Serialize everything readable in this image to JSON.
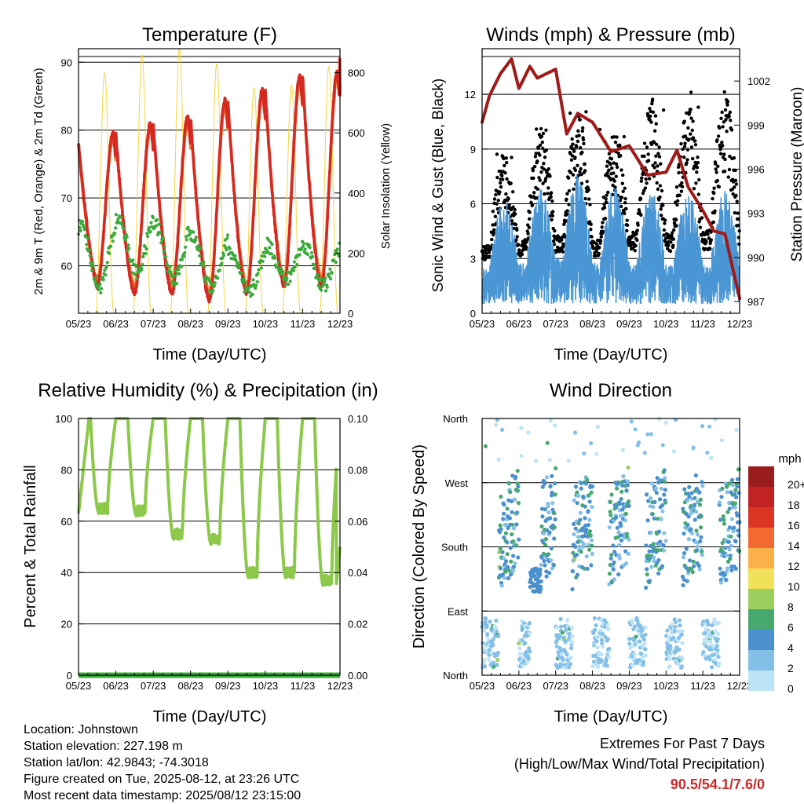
{
  "chart_data": [
    {
      "type": "line",
      "title": "Temperature (F)",
      "xlabel": "Time (Day/UTC)",
      "ylabel": "2m & 9m T (Red, Orange) & 2m Td (Green)",
      "y2label": "Solar Insolation (Yellow)",
      "xticks": [
        "05/23",
        "06/23",
        "07/23",
        "08/23",
        "09/23",
        "10/23",
        "11/23",
        "12/23"
      ],
      "ylim": [
        53,
        92
      ],
      "yticks": [
        60,
        70,
        80,
        90
      ],
      "y2lim": [
        0,
        880
      ],
      "y2ticks": [
        0,
        200,
        400,
        600,
        800
      ],
      "grid": true,
      "series": [
        {
          "color": "#d42a22",
          "days": [
            {
              "min": 57,
              "max": 79.5
            },
            {
              "min": 56,
              "max": 81
            },
            {
              "min": 56,
              "max": 82
            },
            {
              "min": 55,
              "max": 84.5
            },
            {
              "min": 56,
              "max": 86
            },
            {
              "min": 57,
              "max": 88
            },
            {
              "min": 57,
              "max": 88.5
            },
            {
              "min": 85,
              "max": 90.5
            }
          ]
        },
        {
          "color": "#f2782a",
          "days": [
            {
              "min": 58,
              "max": 79
            },
            {
              "min": 57,
              "max": 80.5
            },
            {
              "min": 57,
              "max": 81.5
            },
            {
              "min": 56,
              "max": 84
            },
            {
              "min": 57,
              "max": 85.5
            },
            {
              "min": 58,
              "max": 87.5
            },
            {
              "min": 58,
              "max": 88
            },
            {
              "min": 85,
              "max": 89.5
            }
          ]
        },
        {
          "color": "#3aaa3a",
          "days": [
            {
              "min": 57,
              "max": 66
            },
            {
              "min": 59,
              "max": 67
            },
            {
              "min": 58,
              "max": 66
            },
            {
              "min": 57,
              "max": 64
            },
            {
              "min": 56,
              "max": 62
            },
            {
              "min": 58,
              "max": 63
            },
            {
              "min": 57,
              "max": 63
            },
            {
              "min": 58,
              "max": 64
            }
          ]
        },
        {
          "color": "#f5d442",
          "peaks": [
            800,
            860,
            880,
            830,
            750,
            760,
            820,
            830
          ]
        }
      ]
    },
    {
      "type": "scatter",
      "title": "Winds (mph) & Pressure (mb)",
      "xlabel": "Time (Day/UTC)",
      "ylabel": "Sonic Wind & Gust (Blue, Black)",
      "y2label": "Station Pressure (Maroon)",
      "xticks": [
        "05/23",
        "06/23",
        "07/23",
        "08/23",
        "09/23",
        "10/23",
        "11/23",
        "12/23"
      ],
      "ylim": [
        0,
        14.5
      ],
      "yticks": [
        0,
        3,
        6,
        9,
        12
      ],
      "y2lim": [
        986.2,
        1004.2
      ],
      "y2ticks": [
        987,
        990,
        993,
        996,
        999,
        1002
      ],
      "grid": true,
      "series": [
        {
          "color": "#4a96d4",
          "day_max": [
            5.8,
            6.5,
            7.2,
            6.5,
            6.2,
            6.2,
            6.2,
            5.8
          ]
        },
        {
          "color": "#000000",
          "day_max": [
            8.8,
            10.2,
            11.2,
            10.2,
            11.8,
            12.2,
            12.2,
            9.0
          ]
        },
        {
          "color": "#a01a1a",
          "x": [
            0,
            0.2,
            0.5,
            0.8,
            1.0,
            1.3,
            1.5,
            2.0,
            2.3,
            2.6,
            3.0,
            3.5,
            4.0,
            4.5,
            5.0,
            5.3,
            5.6,
            6.0,
            6.3,
            6.6,
            7.0
          ],
          "y": [
            999.2,
            1001,
            1002.5,
            1003.5,
            1001.5,
            1003,
            1002.2,
            1002.8,
            998.4,
            999.8,
            999.2,
            997.2,
            997.6,
            995.6,
            995.8,
            997.3,
            994.8,
            993.2,
            991.8,
            991.6,
            987.2
          ]
        }
      ]
    },
    {
      "type": "line",
      "title": "Relative Humidity (%) & Precipitation (in)",
      "xlabel": "Time (Day/UTC)",
      "ylabel": "Percent & Total Rainfall",
      "xticks": [
        "05/23",
        "06/23",
        "07/23",
        "08/23",
        "09/23",
        "10/23",
        "11/23",
        "12/23"
      ],
      "ylim": [
        0,
        100
      ],
      "yticks": [
        0,
        20,
        40,
        60,
        80,
        100
      ],
      "y2lim": [
        0,
        0.1
      ],
      "y2ticks": [
        "0.00",
        "0.02",
        "0.04",
        "0.06",
        "0.08",
        "0.10"
      ],
      "grid": true,
      "series": [
        {
          "color": "#8cc84a",
          "day_min": [
            63,
            62,
            53,
            51,
            38,
            38,
            35,
            35
          ]
        },
        {
          "color": "#3aaa3a",
          "value": 0
        }
      ]
    },
    {
      "type": "scatter",
      "title": "Wind Direction",
      "xlabel": "Time (Day/UTC)",
      "ylabel": "Direction (Colored By Speed)",
      "xticks": [
        "05/23",
        "06/23",
        "07/23",
        "08/23",
        "09/23",
        "10/23",
        "11/23",
        "12/23"
      ],
      "ylim": [
        0,
        360
      ],
      "ytick_labels": [
        "North",
        "East",
        "South",
        "West",
        "North"
      ],
      "grid": true,
      "colorbar": {
        "label": "mph",
        "levels": [
          "0",
          "2",
          "4",
          "6",
          "8",
          "10",
          "12",
          "14",
          "16",
          "18",
          "20+"
        ],
        "colors": [
          "#bde3f6",
          "#84bfe8",
          "#4a90cf",
          "#47a870",
          "#9ccf5e",
          "#f0e05a",
          "#fbb04a",
          "#f26a30",
          "#dc3524",
          "#c22222",
          "#9b1c1c"
        ]
      }
    }
  ],
  "station": {
    "location": "Location: Johnstown",
    "elevation": "Station elevation: 227.198 m",
    "latlon": "Station lat/lon: 42.9843; -74.3018",
    "created": "Figure created on Tue, 2025-08-12, at 23:26 UTC",
    "recent": "Most recent data timestamp: 2025/08/12 23:15:00"
  },
  "extremes": {
    "title": "Extremes For Past 7 Days",
    "subtitle": "(High/Low/Max Wind/Total Precipitation)",
    "values": "90.5/54.1/7.6/0"
  }
}
